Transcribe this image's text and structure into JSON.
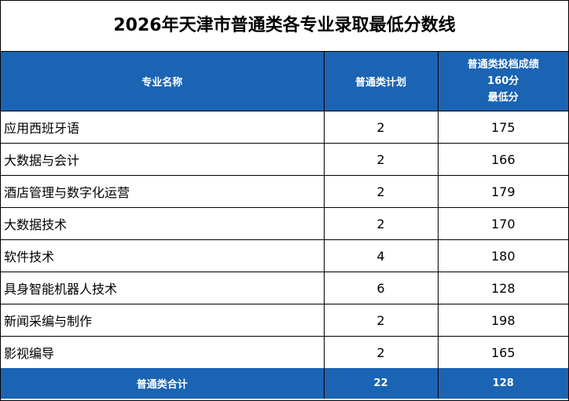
{
  "title": "2026年天津市普通类各专业录取最低分数线",
  "headers": {
    "major": "专业名称",
    "plan": "普通类计划",
    "score_line1": "普通类投档成绩",
    "score_line2": "160分",
    "score_line3": "最低分"
  },
  "rows": [
    {
      "name": "应用西班牙语",
      "plan": "2",
      "score": "175"
    },
    {
      "name": "大数据与会计",
      "plan": "2",
      "score": "166"
    },
    {
      "name": "酒店管理与数字化运营",
      "plan": "2",
      "score": "179"
    },
    {
      "name": "大数据技术",
      "plan": "2",
      "score": "170"
    },
    {
      "name": "软件技术",
      "plan": "4",
      "score": "180"
    },
    {
      "name": "具身智能机器人技术",
      "plan": "6",
      "score": "128"
    },
    {
      "name": "新闻采编与制作",
      "plan": "2",
      "score": "198"
    },
    {
      "name": "影视编导",
      "plan": "2",
      "score": "165"
    }
  ],
  "total": {
    "label": "普通类合计",
    "plan": "22",
    "score": "128"
  },
  "colors": {
    "header_bg": "#1a64b3",
    "header_text": "#ffffff"
  }
}
